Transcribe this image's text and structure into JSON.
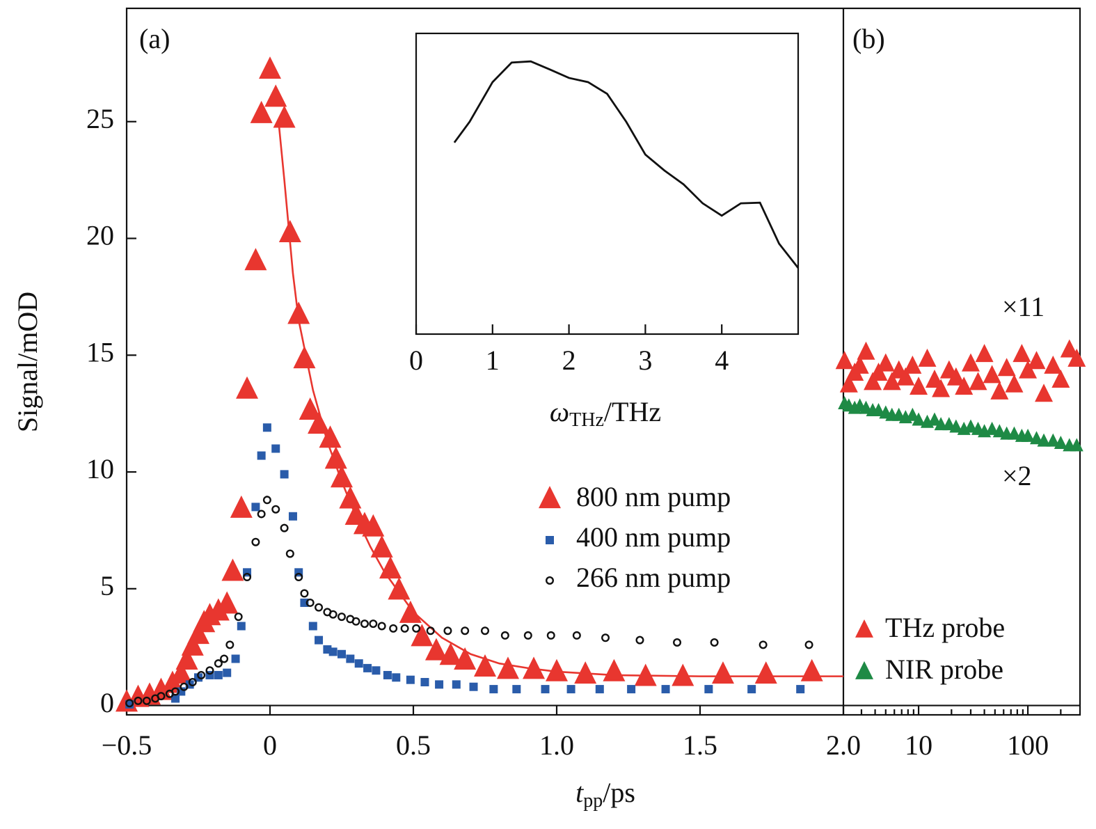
{
  "chart_data": [
    {
      "type": "scatter",
      "panel": "(a)",
      "y_label": "Signal/mOD",
      "x_label": {
        "symbol": "t",
        "subscript": "pp",
        "unit": "/ps"
      },
      "xlim": [
        -0.5,
        2.0
      ],
      "ylim": [
        -0.4,
        29.85
      ],
      "xticks": [
        {
          "value": -0.5,
          "label": "−0.5"
        },
        0,
        0.5,
        {
          "value": 1,
          "label": "1.0"
        },
        1.5,
        {
          "value": 2,
          "label": "2.0"
        }
      ],
      "yticks": [
        0,
        5,
        10,
        15,
        20,
        25
      ],
      "series": [
        {
          "name": "800 nm pump",
          "color": "#e8362f",
          "marker": "triangle",
          "x": [
            -0.5,
            -0.46,
            -0.42,
            -0.38,
            -0.34,
            -0.31,
            -0.29,
            -0.27,
            -0.25,
            -0.23,
            -0.21,
            -0.18,
            -0.15,
            -0.13,
            -0.1,
            -0.08,
            -0.05,
            -0.03,
            0,
            0.02,
            0.05,
            0.07,
            0.1,
            0.12,
            0.14,
            0.17,
            0.21,
            0.23,
            0.25,
            0.28,
            0.3,
            0.33,
            0.36,
            0.39,
            0.42,
            0.45,
            0.49,
            0.53,
            0.58,
            0.63,
            0.68,
            0.75,
            0.83,
            0.92,
            1.0,
            1.1,
            1.2,
            1.31,
            1.44,
            1.58,
            1.73,
            1.89
          ],
          "values": [
            0.1,
            0.3,
            0.4,
            0.6,
            0.9,
            1.3,
            1.9,
            2.5,
            3.0,
            3.5,
            3.8,
            4.0,
            4.3,
            5.7,
            8.4,
            13.5,
            19.0,
            25.3,
            27.2,
            26.0,
            25.1,
            20.2,
            16.7,
            14.8,
            12.6,
            12.0,
            11.4,
            10.5,
            9.7,
            8.8,
            8.1,
            7.7,
            7.6,
            6.7,
            5.8,
            4.9,
            3.9,
            2.9,
            2.3,
            2.1,
            1.9,
            1.6,
            1.5,
            1.5,
            1.4,
            1.3,
            1.4,
            1.2,
            1.2,
            1.3,
            1.3,
            1.4
          ]
        },
        {
          "name": "400 nm pump",
          "color": "#2a5caa",
          "marker": "square",
          "x": [
            -0.49,
            -0.33,
            -0.31,
            -0.28,
            -0.25,
            -0.21,
            -0.18,
            -0.15,
            -0.12,
            -0.1,
            -0.08,
            -0.05,
            -0.03,
            -0.01,
            0.02,
            0.05,
            0.08,
            0.1,
            0.12,
            0.15,
            0.17,
            0.2,
            0.22,
            0.25,
            0.28,
            0.31,
            0.34,
            0.37,
            0.41,
            0.44,
            0.49,
            0.54,
            0.59,
            0.65,
            0.71,
            0.78,
            0.86,
            0.96,
            1.05,
            1.15,
            1.26,
            1.38,
            1.53,
            1.68,
            1.85
          ],
          "values": [
            0.05,
            0.3,
            0.6,
            0.9,
            1.2,
            1.3,
            1.3,
            1.4,
            2.0,
            3.4,
            5.7,
            8.5,
            10.7,
            11.9,
            11.0,
            9.9,
            8.1,
            5.7,
            4.4,
            3.4,
            2.8,
            2.4,
            2.3,
            2.2,
            2.0,
            1.8,
            1.6,
            1.5,
            1.3,
            1.2,
            1.1,
            1.0,
            0.9,
            0.9,
            0.8,
            0.7,
            0.7,
            0.7,
            0.7,
            0.7,
            0.7,
            0.7,
            0.7,
            0.7,
            0.7
          ]
        },
        {
          "name": "266 nm pump",
          "color": "#111111",
          "marker": "circle",
          "x": [
            -0.49,
            -0.46,
            -0.43,
            -0.4,
            -0.38,
            -0.35,
            -0.33,
            -0.3,
            -0.27,
            -0.24,
            -0.21,
            -0.18,
            -0.16,
            -0.14,
            -0.11,
            -0.08,
            -0.05,
            -0.03,
            -0.01,
            0.02,
            0.05,
            0.07,
            0.1,
            0.12,
            0.14,
            0.17,
            0.2,
            0.22,
            0.25,
            0.28,
            0.3,
            0.33,
            0.36,
            0.39,
            0.43,
            0.47,
            0.51,
            0.56,
            0.62,
            0.68,
            0.75,
            0.82,
            0.9,
            0.98,
            1.07,
            1.17,
            1.29,
            1.42,
            1.55,
            1.72,
            1.88
          ],
          "values": [
            0.1,
            0.2,
            0.2,
            0.3,
            0.4,
            0.5,
            0.6,
            0.8,
            1.0,
            1.3,
            1.5,
            1.8,
            2.0,
            2.6,
            3.8,
            5.5,
            7.0,
            8.2,
            8.8,
            8.4,
            7.6,
            6.5,
            5.5,
            4.8,
            4.4,
            4.2,
            4.0,
            3.9,
            3.8,
            3.7,
            3.6,
            3.5,
            3.5,
            3.4,
            3.3,
            3.3,
            3.3,
            3.2,
            3.2,
            3.2,
            3.2,
            3.0,
            3.0,
            3.0,
            3.0,
            2.9,
            2.8,
            2.7,
            2.7,
            2.6,
            2.6
          ]
        }
      ],
      "fit_line": {
        "color": "#e8362f",
        "x": [
          0.03,
          0.05,
          0.08,
          0.1,
          0.15,
          0.2,
          0.25,
          0.3,
          0.35,
          0.4,
          0.5,
          0.6,
          0.7,
          0.8,
          0.9,
          1.0,
          1.2,
          1.5,
          2.0
        ],
        "values": [
          25.0,
          22.5,
          18.5,
          16.5,
          13.5,
          11.3,
          9.6,
          8.1,
          6.8,
          5.7,
          4.0,
          2.9,
          2.2,
          1.8,
          1.6,
          1.45,
          1.3,
          1.25,
          1.25
        ]
      }
    },
    {
      "type": "scatter",
      "panel": "(b)",
      "xscale": "log",
      "xlim": [
        2.05,
        300
      ],
      "ylim": [
        -0.4,
        29.85
      ],
      "xticks": [
        10,
        100
      ],
      "series": [
        {
          "name": "THz probe",
          "color": "#e8362f",
          "marker": "triangle",
          "x": [
            2.1,
            2.3,
            2.6,
            2.9,
            3.3,
            3.8,
            4.3,
            5,
            5.7,
            6.6,
            7.6,
            8.8,
            10,
            12,
            14,
            16,
            19,
            22,
            26,
            30,
            35,
            40,
            47,
            55,
            64,
            75,
            88,
            100,
            120,
            140,
            170,
            200,
            240,
            280
          ],
          "values": [
            14.7,
            13.7,
            14.2,
            14.5,
            15.1,
            13.8,
            14.2,
            14.6,
            13.8,
            14.3,
            14.0,
            14.5,
            13.6,
            14.8,
            13.9,
            13.5,
            14.3,
            14.0,
            13.6,
            14.6,
            13.8,
            15.0,
            14.1,
            13.4,
            14.4,
            13.7,
            15.0,
            14.3,
            14.7,
            13.3,
            14.5,
            13.9,
            15.2,
            14.8
          ]
        },
        {
          "name": "NIR probe",
          "color": "#1e8a45",
          "marker": "small-triangle",
          "x": [
            2.1,
            2.3,
            2.6,
            2.9,
            3.3,
            3.8,
            4.3,
            5,
            5.7,
            6.6,
            7.6,
            8.8,
            10,
            12,
            14,
            16,
            19,
            22,
            26,
            30,
            35,
            40,
            47,
            55,
            64,
            75,
            88,
            100,
            120,
            140,
            170,
            200,
            240,
            280
          ],
          "values": [
            12.9,
            12.8,
            12.7,
            12.8,
            12.7,
            12.6,
            12.6,
            12.5,
            12.4,
            12.4,
            12.3,
            12.4,
            12.2,
            12.1,
            12.2,
            12.0,
            12.0,
            11.9,
            11.8,
            11.9,
            11.8,
            11.7,
            11.8,
            11.7,
            11.6,
            11.6,
            11.5,
            11.5,
            11.4,
            11.3,
            11.3,
            11.2,
            11.1,
            11.1
          ]
        }
      ],
      "annotations": [
        {
          "text": "×11",
          "color": "#e8362f"
        },
        {
          "text": "×2",
          "color": "#1e8a45"
        }
      ]
    },
    {
      "type": "line",
      "x_label": {
        "symbol": "ω",
        "subscript": "THz",
        "unit": "/THz"
      },
      "xlim": [
        0,
        5
      ],
      "ylim": [
        0,
        1
      ],
      "xticks": [
        0,
        1,
        2,
        3,
        4
      ],
      "color": "#111111",
      "x": [
        0.5,
        0.7,
        1.0,
        1.25,
        1.5,
        1.75,
        2.0,
        2.25,
        2.5,
        2.75,
        3.0,
        3.25,
        3.5,
        3.75,
        4.0,
        4.25,
        4.5,
        4.75,
        5.0
      ],
      "values": [
        0.637,
        0.706,
        0.838,
        0.903,
        0.907,
        0.88,
        0.852,
        0.838,
        0.799,
        0.706,
        0.597,
        0.544,
        0.498,
        0.435,
        0.394,
        0.435,
        0.437,
        0.301,
        0.22
      ]
    }
  ]
}
